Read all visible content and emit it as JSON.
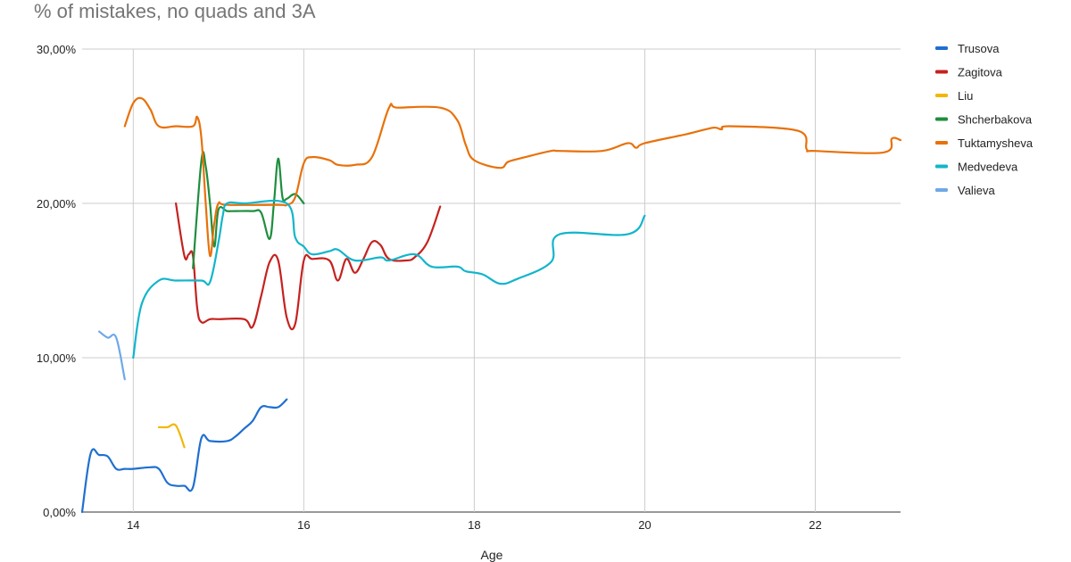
{
  "chart_data": {
    "type": "line",
    "title": "% of mistakes, no quads and 3A",
    "xlabel": "Age",
    "ylabel": "",
    "xlim": [
      13.4,
      23
    ],
    "ylim": [
      0,
      30
    ],
    "x_ticks": [
      14,
      16,
      18,
      20,
      22
    ],
    "y_ticks": [
      0,
      10,
      20,
      30
    ],
    "y_tick_labels": [
      "0,00%",
      "10,00%",
      "20,00%",
      "30,00%"
    ],
    "grid": true,
    "legend_position": "right",
    "series": [
      {
        "name": "Trusova",
        "color": "#1f6fd0",
        "points": [
          [
            13.4,
            0
          ],
          [
            13.5,
            3.8
          ],
          [
            13.6,
            3.7
          ],
          [
            13.7,
            3.6
          ],
          [
            13.8,
            2.8
          ],
          [
            13.9,
            2.8
          ],
          [
            14.0,
            2.8
          ],
          [
            14.2,
            2.9
          ],
          [
            14.3,
            2.8
          ],
          [
            14.4,
            1.9
          ],
          [
            14.5,
            1.7
          ],
          [
            14.6,
            1.7
          ],
          [
            14.7,
            1.6
          ],
          [
            14.8,
            4.8
          ],
          [
            14.9,
            4.6
          ],
          [
            15.1,
            4.6
          ],
          [
            15.2,
            4.9
          ],
          [
            15.3,
            5.4
          ],
          [
            15.4,
            5.9
          ],
          [
            15.5,
            6.8
          ],
          [
            15.6,
            6.8
          ],
          [
            15.7,
            6.8
          ],
          [
            15.8,
            7.3
          ]
        ]
      },
      {
        "name": "Zagitova",
        "color": "#c5221f",
        "points": [
          [
            14.5,
            20.0
          ],
          [
            14.6,
            16.6
          ],
          [
            14.65,
            16.7
          ],
          [
            14.7,
            16.6
          ],
          [
            14.75,
            13.2
          ],
          [
            14.8,
            12.3
          ],
          [
            14.9,
            12.5
          ],
          [
            15.0,
            12.5
          ],
          [
            15.3,
            12.5
          ],
          [
            15.4,
            12.0
          ],
          [
            15.5,
            14.0
          ],
          [
            15.6,
            16.2
          ],
          [
            15.7,
            16.3
          ],
          [
            15.8,
            12.6
          ],
          [
            15.9,
            12.2
          ],
          [
            16.0,
            16.3
          ],
          [
            16.1,
            16.4
          ],
          [
            16.3,
            16.3
          ],
          [
            16.4,
            15.0
          ],
          [
            16.5,
            16.4
          ],
          [
            16.6,
            15.5
          ],
          [
            16.7,
            16.4
          ],
          [
            16.8,
            17.5
          ],
          [
            16.9,
            17.3
          ],
          [
            17.0,
            16.4
          ],
          [
            17.2,
            16.3
          ],
          [
            17.3,
            16.5
          ],
          [
            17.45,
            17.5
          ],
          [
            17.6,
            19.8
          ]
        ]
      },
      {
        "name": "Liu",
        "color": "#f2b705",
        "points": [
          [
            14.3,
            5.5
          ],
          [
            14.4,
            5.5
          ],
          [
            14.5,
            5.6
          ],
          [
            14.6,
            4.2
          ]
        ]
      },
      {
        "name": "Shcherbakova",
        "color": "#1e8e3e",
        "points": [
          [
            14.7,
            15.8
          ],
          [
            14.8,
            22.8
          ],
          [
            14.85,
            22.4
          ],
          [
            14.9,
            20.0
          ],
          [
            14.95,
            17.2
          ],
          [
            15.0,
            19.6
          ],
          [
            15.1,
            19.5
          ],
          [
            15.2,
            19.5
          ],
          [
            15.4,
            19.5
          ],
          [
            15.5,
            19.4
          ],
          [
            15.6,
            17.7
          ],
          [
            15.65,
            20.0
          ],
          [
            15.7,
            22.9
          ],
          [
            15.75,
            20.4
          ],
          [
            15.8,
            20.3
          ],
          [
            15.9,
            20.6
          ],
          [
            16.0,
            20.0
          ]
        ]
      },
      {
        "name": "Tuktamysheva",
        "color": "#e8710a",
        "points": [
          [
            13.9,
            25.0
          ],
          [
            14.0,
            26.5
          ],
          [
            14.1,
            26.8
          ],
          [
            14.2,
            26.1
          ],
          [
            14.3,
            25.0
          ],
          [
            14.5,
            25.0
          ],
          [
            14.7,
            25.0
          ],
          [
            14.75,
            25.6
          ],
          [
            14.8,
            24.2
          ],
          [
            14.85,
            20.0
          ],
          [
            14.9,
            16.6
          ],
          [
            14.95,
            18.7
          ],
          [
            15.0,
            20.0
          ],
          [
            15.1,
            19.9
          ],
          [
            15.7,
            19.9
          ],
          [
            15.8,
            19.9
          ],
          [
            15.9,
            20.4
          ],
          [
            16.0,
            22.6
          ],
          [
            16.1,
            23.0
          ],
          [
            16.3,
            22.8
          ],
          [
            16.4,
            22.5
          ],
          [
            16.6,
            22.5
          ],
          [
            16.8,
            23.0
          ],
          [
            17.0,
            26.2
          ],
          [
            17.1,
            26.2
          ],
          [
            17.6,
            26.2
          ],
          [
            17.8,
            25.4
          ],
          [
            17.9,
            23.8
          ],
          [
            18.0,
            22.8
          ],
          [
            18.3,
            22.3
          ],
          [
            18.4,
            22.7
          ],
          [
            18.6,
            23.0
          ],
          [
            18.9,
            23.4
          ],
          [
            19.0,
            23.4
          ],
          [
            19.5,
            23.4
          ],
          [
            19.8,
            23.9
          ],
          [
            19.9,
            23.6
          ],
          [
            20.0,
            23.9
          ],
          [
            20.5,
            24.5
          ],
          [
            20.8,
            24.9
          ],
          [
            20.9,
            24.8
          ],
          [
            21.0,
            25.0
          ],
          [
            21.8,
            24.7
          ],
          [
            21.9,
            23.5
          ],
          [
            22.0,
            23.4
          ],
          [
            22.8,
            23.3
          ],
          [
            22.9,
            24.2
          ],
          [
            23.0,
            24.1
          ]
        ]
      },
      {
        "name": "Medvedeva",
        "color": "#12b5cb",
        "points": [
          [
            14.0,
            10.0
          ],
          [
            14.1,
            13.5
          ],
          [
            14.3,
            15.0
          ],
          [
            14.5,
            15.0
          ],
          [
            14.8,
            15.0
          ],
          [
            14.9,
            14.9
          ],
          [
            15.0,
            17.5
          ],
          [
            15.05,
            19.2
          ],
          [
            15.1,
            20.0
          ],
          [
            15.3,
            20.0
          ],
          [
            15.8,
            20.0
          ],
          [
            15.9,
            17.8
          ],
          [
            16.0,
            17.2
          ],
          [
            16.1,
            16.7
          ],
          [
            16.3,
            16.9
          ],
          [
            16.4,
            17.0
          ],
          [
            16.6,
            16.3
          ],
          [
            16.9,
            16.5
          ],
          [
            17.0,
            16.3
          ],
          [
            17.3,
            16.7
          ],
          [
            17.5,
            15.9
          ],
          [
            17.8,
            15.9
          ],
          [
            17.9,
            15.6
          ],
          [
            18.1,
            15.4
          ],
          [
            18.3,
            14.8
          ],
          [
            18.5,
            15.1
          ],
          [
            18.9,
            16.2
          ],
          [
            19.0,
            18.0
          ],
          [
            19.8,
            18.0
          ],
          [
            20.0,
            19.2
          ]
        ]
      },
      {
        "name": "Valieva",
        "color": "#6fa8e8",
        "points": [
          [
            13.6,
            11.7
          ],
          [
            13.7,
            11.3
          ],
          [
            13.8,
            11.3
          ],
          [
            13.9,
            8.6
          ]
        ]
      }
    ]
  }
}
